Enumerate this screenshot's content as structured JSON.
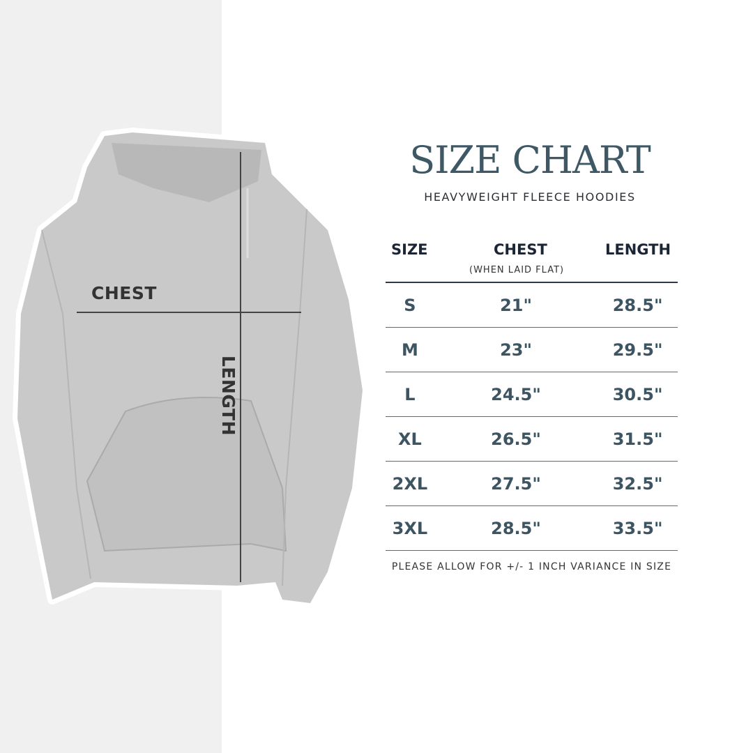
{
  "title": "SIZE CHART",
  "subtitle": "HEAVYWEIGHT FLEECE HOODIES",
  "image_labels": {
    "chest": "CHEST",
    "length": "LENGTH"
  },
  "table": {
    "headers": [
      "SIZE",
      "CHEST",
      "LENGTH"
    ],
    "chest_note": "(WHEN LAID FLAT)",
    "rows": [
      [
        "S",
        "21\"",
        "28.5\""
      ],
      [
        "M",
        "23\"",
        "29.5\""
      ],
      [
        "L",
        "24.5\"",
        "30.5\""
      ],
      [
        "XL",
        "26.5\"",
        "31.5\""
      ],
      [
        "2XL",
        "27.5\"",
        "32.5\""
      ],
      [
        "3XL",
        "28.5\"",
        "33.5\""
      ]
    ]
  },
  "footnote": "PLEASE ALLOW FOR +/- 1 INCH VARIANCE IN SIZE",
  "colors": {
    "title": "#3f5866",
    "header": "#1c2536",
    "values": "#3d5462",
    "hoodie": "#c9c9c9"
  }
}
